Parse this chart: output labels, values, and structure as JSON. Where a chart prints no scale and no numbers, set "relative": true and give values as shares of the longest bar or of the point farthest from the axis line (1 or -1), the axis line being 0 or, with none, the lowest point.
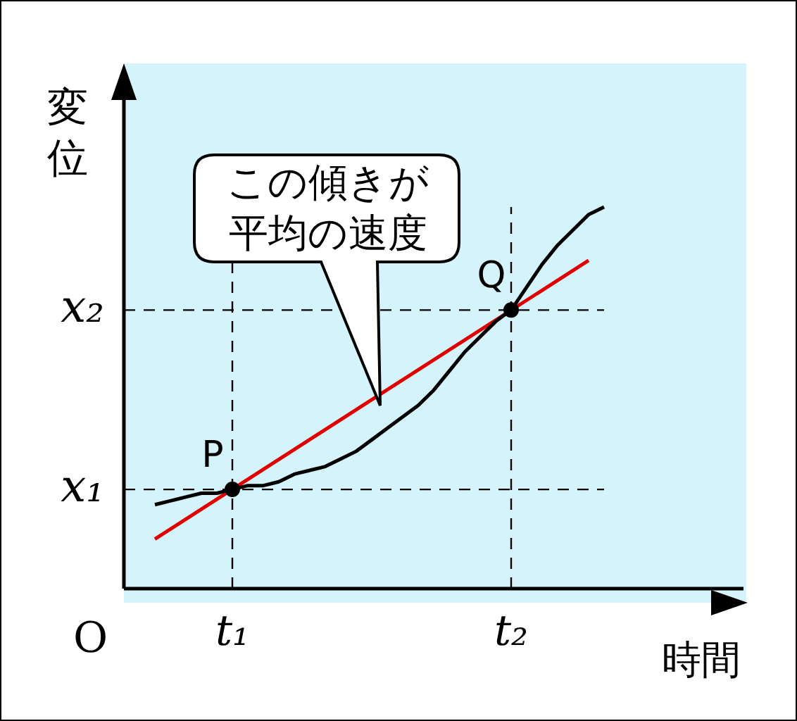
{
  "chart_data": {
    "type": "line",
    "relative": true,
    "ylabel": "変位",
    "xlabel": "時間",
    "legend": false,
    "grid": false,
    "categories": [
      null,
      null,
      null,
      null,
      null,
      null,
      null,
      "t₁",
      null,
      null,
      null,
      null,
      null,
      null,
      null,
      null,
      null,
      null,
      null,
      null,
      null,
      null,
      null,
      null,
      null,
      "t₂",
      null,
      null,
      null,
      null,
      null,
      null,
      null,
      null,
      null,
      null,
      null,
      null,
      null,
      null,
      null
    ],
    "series": [
      {
        "color": "#000000",
        "marker": "none",
        "values": [
          null,
          null,
          0.22,
          0.23,
          0.24,
          0.25,
          0.25,
          0.26,
          0.27,
          0.27,
          0.28,
          0.3,
          0.31,
          0.32,
          0.34,
          0.36,
          0.39,
          0.42,
          0.45,
          0.48,
          0.52,
          0.57,
          0.62,
          0.66,
          0.7,
          0.73,
          0.79,
          0.85,
          0.9,
          0.94,
          0.98,
          1.0,
          null,
          null,
          null,
          null,
          null,
          null,
          null,
          null,
          null
        ]
      },
      {
        "color": "#e00000",
        "marker": "none",
        "values": [
          null,
          null,
          0.13,
          null,
          null,
          null,
          null,
          null,
          null,
          null,
          null,
          null,
          null,
          null,
          null,
          null,
          null,
          null,
          null,
          null,
          null,
          null,
          null,
          null,
          null,
          null,
          null,
          null,
          null,
          null,
          0.86,
          null,
          null,
          null,
          null,
          null,
          null,
          null,
          null,
          null,
          null
        ]
      },
      {
        "type": "scatter",
        "color": "#000000",
        "marker": "circle",
        "values": [
          null,
          null,
          null,
          null,
          null,
          null,
          null,
          0.26,
          null,
          null,
          null,
          null,
          null,
          null,
          null,
          null,
          null,
          null,
          null,
          null,
          null,
          null,
          null,
          null,
          null,
          0.73,
          null,
          null,
          null,
          null,
          null,
          null,
          null,
          null,
          null,
          null,
          null,
          null,
          null,
          null,
          null
        ]
      }
    ],
    "ref_lines": [
      {
        "axis": "y",
        "value": 0.26,
        "label": "x₁",
        "line_style": "dashed"
      },
      {
        "axis": "y",
        "value": 0.73,
        "label": "x₂",
        "line_style": "dashed"
      },
      {
        "axis": "x",
        "value": "t₁",
        "line_style": "dashed"
      },
      {
        "axis": "x",
        "value": "t₂",
        "line_style": "dashed"
      }
    ],
    "annotations": [
      "この傾きが平均の速度",
      "O",
      {
        "text": "P",
        "x": "t₁",
        "y": 0.26
      },
      {
        "text": "Q",
        "x": "t₂",
        "y": 0.73
      }
    ]
  }
}
